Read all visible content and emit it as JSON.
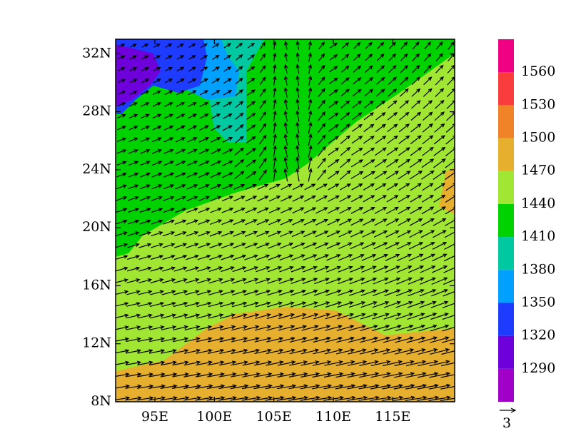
{
  "map": {
    "xlim": [
      91.7,
      120.2
    ],
    "ylim": [
      8,
      33
    ],
    "xticks": [
      {
        "value": 95,
        "label": "95E"
      },
      {
        "value": 100,
        "label": "100E"
      },
      {
        "value": 105,
        "label": "105E"
      },
      {
        "value": 110,
        "label": "110E"
      },
      {
        "value": 115,
        "label": "115E"
      }
    ],
    "yticks": [
      {
        "value": 8,
        "label": "8N"
      },
      {
        "value": 12,
        "label": "12N"
      },
      {
        "value": 16,
        "label": "16N"
      },
      {
        "value": 20,
        "label": "20N"
      },
      {
        "value": 24,
        "label": "24N"
      },
      {
        "value": 28,
        "label": "28N"
      },
      {
        "value": 32,
        "label": "32N"
      }
    ]
  },
  "colorbar": {
    "clim": [
      1260,
      1590
    ],
    "levels": [
      1290,
      1320,
      1350,
      1380,
      1410,
      1440,
      1470,
      1500,
      1530,
      1560
    ],
    "colors": [
      "#a000c8",
      "#6e00dc",
      "#1e3cff",
      "#00a0ff",
      "#00c8a0",
      "#00d200",
      "#a0e632",
      "#e6af2d",
      "#f08228",
      "#fa3c3c",
      "#f00082"
    ]
  },
  "vector_reference": {
    "label": "3"
  }
}
